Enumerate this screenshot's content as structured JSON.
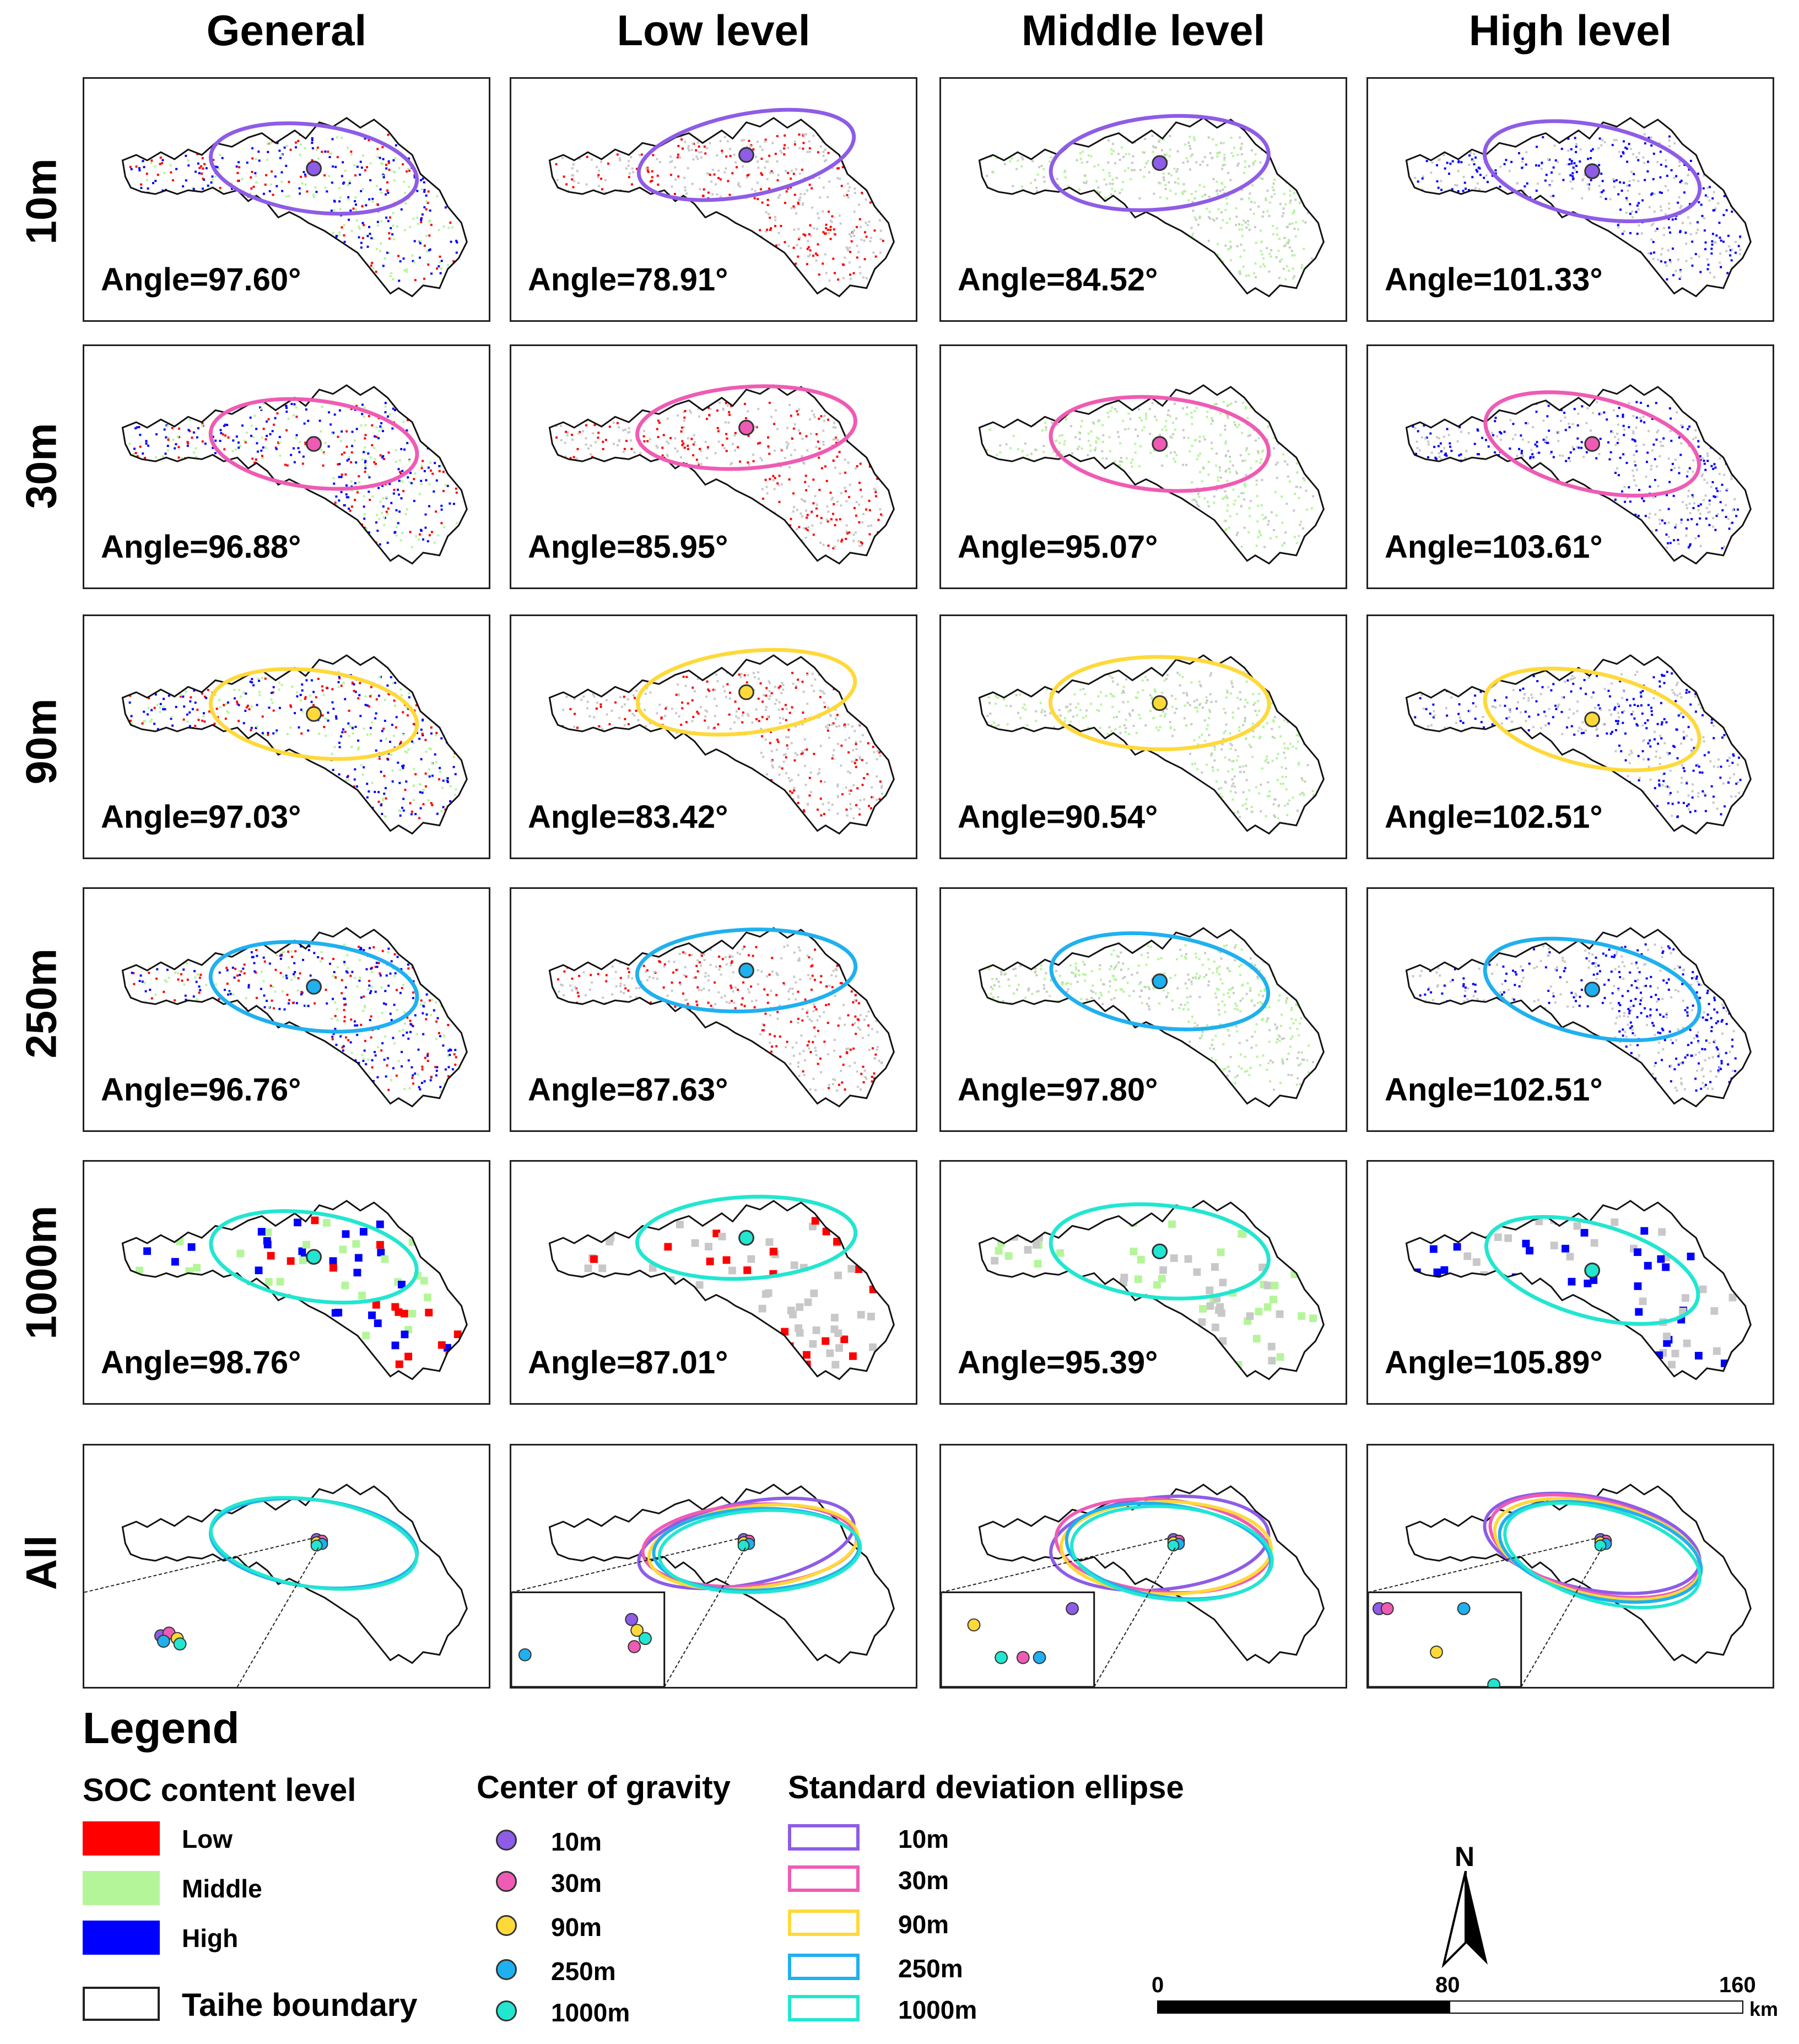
{
  "columns": [
    "General",
    "Low level",
    "Middle level",
    "High level"
  ],
  "rows": [
    "10m",
    "30m",
    "90m",
    "250m",
    "1000m",
    "All"
  ],
  "angles": [
    [
      "Angle=97.60°",
      "Angle=78.91°",
      "Angle=84.52°",
      "Angle=101.33°"
    ],
    [
      "Angle=96.88°",
      "Angle=85.95°",
      "Angle=95.07°",
      "Angle=103.61°"
    ],
    [
      "Angle=97.03°",
      "Angle=83.42°",
      "Angle=90.54°",
      "Angle=102.51°"
    ],
    [
      "Angle=96.76°",
      "Angle=87.63°",
      "Angle=97.80°",
      "Angle=102.51°"
    ],
    [
      "Angle=98.76°",
      "Angle=87.01°",
      "Angle=95.39°",
      "Angle=105.89°"
    ]
  ],
  "angle_values": [
    [
      97.6,
      78.91,
      84.52,
      101.33
    ],
    [
      96.88,
      85.95,
      95.07,
      103.61
    ],
    [
      97.03,
      83.42,
      90.54,
      102.51
    ],
    [
      96.76,
      87.63,
      97.8,
      102.51
    ],
    [
      98.76,
      87.01,
      95.39,
      105.89
    ]
  ],
  "colors": {
    "low": "#ff0000",
    "middle": "#b5f59a",
    "high": "#0000ff",
    "background_soil": "#c8c8c8",
    "res_10m": "#8e5ce6",
    "res_30m": "#ef5bb4",
    "res_90m": "#ffd93a",
    "res_250m": "#1fb0ef",
    "res_1000m": "#22e6d0"
  },
  "legend": {
    "title": "Legend",
    "soc_heading": "SOC content level",
    "soc_items": [
      "Low",
      "Middle",
      "High"
    ],
    "boundary_label": "Taihe boundary",
    "cog_heading": "Center of gravity",
    "cog_items": [
      "10m",
      "30m",
      "90m",
      "250m",
      "1000m"
    ],
    "sde_heading": "Standard deviation ellipse",
    "sde_items": [
      "10m",
      "30m",
      "90m",
      "250m",
      "1000m"
    ]
  },
  "north_arrow": "N",
  "scale_bar": {
    "labels": [
      "0",
      "80",
      "160"
    ],
    "unit": "km"
  }
}
